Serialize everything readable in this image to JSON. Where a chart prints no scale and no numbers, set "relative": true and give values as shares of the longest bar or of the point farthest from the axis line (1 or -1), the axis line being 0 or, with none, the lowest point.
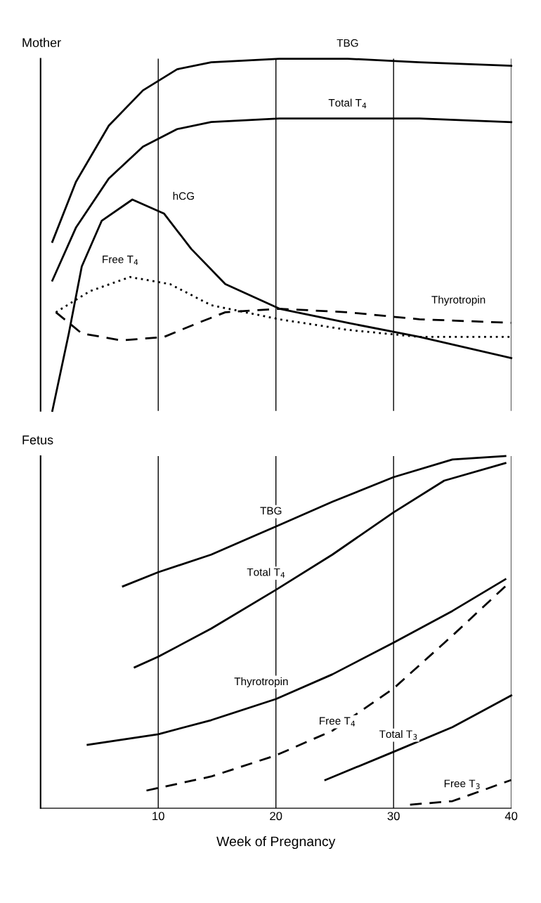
{
  "chart_data": [
    {
      "type": "line",
      "title": "Mother",
      "relative": true,
      "xlim": [
        0,
        40
      ],
      "xticks": [
        10,
        20,
        30,
        40
      ],
      "tick_labels": false,
      "grid": "x",
      "series": [
        {
          "name": "TBG",
          "color": "#000000",
          "line_style": "solid",
          "x": [
            1,
            3,
            5.8,
            8.7,
            11.6,
            14.5,
            20.3,
            26.1,
            32.2,
            40
          ],
          "values": [
            0.48,
            0.65,
            0.81,
            0.91,
            0.97,
            0.99,
            1.0,
            1.0,
            0.99,
            0.98
          ]
        },
        {
          "name": "Total T$_{4}$",
          "color": "#000000",
          "line_style": "solid",
          "x": [
            1,
            3,
            5.8,
            8.7,
            11.6,
            14.5,
            20.3,
            26.1,
            32.2,
            40
          ],
          "values": [
            0.37,
            0.52,
            0.66,
            0.75,
            0.8,
            0.82,
            0.83,
            0.83,
            0.83,
            0.82
          ]
        },
        {
          "name": "hCG",
          "color": "#000000",
          "line_style": "solid",
          "x": [
            1,
            2.4,
            3.5,
            5.2,
            7.8,
            10.5,
            12.8,
            15.7,
            20.3,
            26.1,
            32.2,
            40
          ],
          "values": [
            0,
            0.22,
            0.41,
            0.54,
            0.6,
            0.56,
            0.46,
            0.36,
            0.29,
            0.25,
            0.21,
            0.15
          ]
        },
        {
          "name": "Free T$_{4}$",
          "color": "#000000",
          "line_style": "dotted",
          "x": [
            1.3,
            4.2,
            7.6,
            11,
            14.5,
            20.3,
            26.1,
            32.2,
            40
          ],
          "values": [
            0.28,
            0.34,
            0.38,
            0.36,
            0.3,
            0.26,
            0.23,
            0.21,
            0.21
          ]
        },
        {
          "name": "Thyrotropin",
          "color": "#000000",
          "line_style": "dashed",
          "x": [
            1.3,
            3.5,
            6.9,
            10.5,
            13.4,
            15.7,
            20.3,
            26.1,
            32.2,
            40
          ],
          "values": [
            0.28,
            0.22,
            0.2,
            0.21,
            0.25,
            0.28,
            0.29,
            0.28,
            0.26,
            0.25
          ]
        }
      ]
    },
    {
      "type": "line",
      "title": "Fetus",
      "xlabel": "Week of Pregnancy",
      "relative": true,
      "xlim": [
        0,
        40
      ],
      "xticks": [
        10,
        20,
        30,
        40
      ],
      "tick_labels": "x",
      "grid": "x",
      "series": [
        {
          "name": "TBG",
          "color": "#000000",
          "line_style": "solid",
          "x": [
            7,
            10,
            14.5,
            20,
            24.8,
            30,
            35,
            39.5
          ],
          "values": [
            0.63,
            0.67,
            0.72,
            0.8,
            0.87,
            0.94,
            0.99,
            1.0
          ]
        },
        {
          "name": "Total T$_{4}$",
          "color": "#000000",
          "line_style": "solid",
          "x": [
            8,
            10,
            14.5,
            20,
            24.8,
            30,
            34.3,
            39.5
          ],
          "values": [
            0.4,
            0.43,
            0.51,
            0.62,
            0.72,
            0.84,
            0.93,
            0.98
          ]
        },
        {
          "name": "Thyrotropin",
          "color": "#000000",
          "line_style": "solid",
          "x": [
            4,
            10,
            14.5,
            20,
            24.8,
            30,
            35,
            39.5
          ],
          "values": [
            0.18,
            0.21,
            0.25,
            0.31,
            0.38,
            0.47,
            0.56,
            0.65
          ]
        },
        {
          "name": "Free T$_{4}$",
          "color": "#000000",
          "line_style": "dashed",
          "x": [
            9,
            14.5,
            20,
            24.8,
            30,
            35,
            39.5
          ],
          "values": [
            0.05,
            0.09,
            0.15,
            0.22,
            0.34,
            0.49,
            0.63
          ]
        },
        {
          "name": "Total T$_{3}$",
          "color": "#000000",
          "line_style": "solid",
          "x": [
            24.2,
            30,
            35,
            40
          ],
          "values": [
            0.08,
            0.16,
            0.23,
            0.32
          ]
        },
        {
          "name": "Free T$_{3}$",
          "color": "#000000",
          "line_style": "dashed",
          "x": [
            31.4,
            35,
            40
          ],
          "values": [
            0.01,
            0.02,
            0.08
          ]
        }
      ]
    }
  ]
}
